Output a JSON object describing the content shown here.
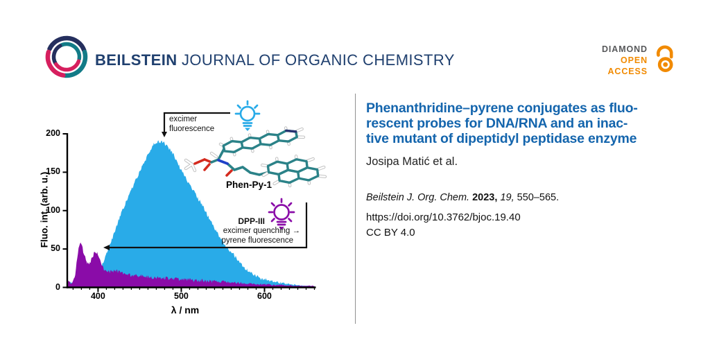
{
  "header": {
    "journal_name_bold": "BEILSTEIN",
    "journal_name_rest": "JOURNAL OF ORGANIC CHEMISTRY",
    "open_access": {
      "line1": "DIAMOND",
      "line2": "OPEN",
      "line3": "ACCESS"
    }
  },
  "article": {
    "title_lines": [
      "Phenanthridine–pyrene conjugates as fluo-",
      "rescent probes for DNA/RNA and an inac-",
      "tive mutant of dipeptidyl peptidase enzyme"
    ],
    "authors": "Josipa Matić et al.",
    "citation": {
      "journal": "Beilstein J. Org. Chem.",
      "year": "2023,",
      "volume": "19,",
      "pages": "550–565."
    },
    "doi": "https://doi.org/10.3762/bjoc.19.40",
    "license": "CC BY 4.0"
  },
  "figure": {
    "molecule_label": "Phen-Py-1",
    "annotations": {
      "excimer_line1": "excimer",
      "excimer_line2": "fluorescence",
      "dpp_name": "DPP-III",
      "dpp_line1": "excimer quenching →",
      "dpp_line2": "pyrene fluorescence"
    }
  },
  "chart_data": {
    "type": "area",
    "title": "",
    "xlabel": "λ / nm",
    "ylabel": "Fluo. int. (arb. u.)",
    "xlim": [
      363,
      660
    ],
    "ylim": [
      0,
      200
    ],
    "xticks": [
      400,
      500,
      600
    ],
    "yticks": [
      0,
      50,
      100,
      150,
      200
    ],
    "grid": false,
    "legend": "none",
    "series": [
      {
        "name": "Phen-Py-1 excimer emission",
        "color": "#29abe8",
        "points": [
          [
            363,
            8
          ],
          [
            365,
            5
          ],
          [
            367,
            6
          ],
          [
            369,
            5
          ],
          [
            371,
            6
          ],
          [
            374,
            7
          ],
          [
            377,
            7
          ],
          [
            380,
            8
          ],
          [
            383,
            8
          ],
          [
            386,
            9
          ],
          [
            389,
            10
          ],
          [
            392,
            12
          ],
          [
            395,
            14
          ],
          [
            398,
            17
          ],
          [
            401,
            22
          ],
          [
            404,
            28
          ],
          [
            407,
            35
          ],
          [
            410,
            43
          ],
          [
            413,
            51
          ],
          [
            416,
            60
          ],
          [
            419,
            70
          ],
          [
            422,
            79
          ],
          [
            425,
            88
          ],
          [
            428,
            97
          ],
          [
            431,
            105
          ],
          [
            434,
            112
          ],
          [
            437,
            119
          ],
          [
            440,
            127
          ],
          [
            443,
            134
          ],
          [
            446,
            141
          ],
          [
            449,
            148
          ],
          [
            452,
            155
          ],
          [
            455,
            161
          ],
          [
            458,
            168
          ],
          [
            461,
            175
          ],
          [
            464,
            181
          ],
          [
            467,
            186
          ],
          [
            470,
            189
          ],
          [
            473,
            190
          ],
          [
            476,
            189
          ],
          [
            479,
            188
          ],
          [
            482,
            185
          ],
          [
            485,
            181
          ],
          [
            488,
            177
          ],
          [
            491,
            172
          ],
          [
            494,
            166
          ],
          [
            497,
            159
          ],
          [
            500,
            152
          ],
          [
            505,
            143
          ],
          [
            510,
            134
          ],
          [
            515,
            125
          ],
          [
            520,
            116
          ],
          [
            525,
            107
          ],
          [
            530,
            97
          ],
          [
            535,
            87
          ],
          [
            540,
            77
          ],
          [
            545,
            68
          ],
          [
            550,
            59
          ],
          [
            555,
            52
          ],
          [
            560,
            46
          ],
          [
            565,
            40
          ],
          [
            570,
            33
          ],
          [
            575,
            27
          ],
          [
            580,
            22
          ],
          [
            585,
            18
          ],
          [
            590,
            15
          ],
          [
            595,
            12
          ],
          [
            600,
            10
          ],
          [
            610,
            8
          ],
          [
            620,
            6
          ],
          [
            630,
            4
          ],
          [
            640,
            3
          ],
          [
            650,
            2
          ],
          [
            660,
            2
          ]
        ]
      },
      {
        "name": "Phen-Py-1 + DPP-III (excimer quenched, pyrene emission)",
        "color": "#8a0ca8",
        "points": [
          [
            363,
            7
          ],
          [
            365,
            9
          ],
          [
            367,
            5
          ],
          [
            369,
            6
          ],
          [
            371,
            10
          ],
          [
            373,
            20
          ],
          [
            375,
            38
          ],
          [
            377,
            52
          ],
          [
            379,
            59
          ],
          [
            381,
            53
          ],
          [
            383,
            43
          ],
          [
            385,
            37
          ],
          [
            387,
            33
          ],
          [
            389,
            32
          ],
          [
            391,
            34
          ],
          [
            393,
            39
          ],
          [
            395,
            44
          ],
          [
            397,
            46
          ],
          [
            399,
            44
          ],
          [
            401,
            39
          ],
          [
            403,
            32
          ],
          [
            405,
            27
          ],
          [
            407,
            23
          ],
          [
            409,
            21
          ],
          [
            411,
            20
          ],
          [
            413,
            20
          ],
          [
            415,
            21
          ],
          [
            417,
            22
          ],
          [
            419,
            21
          ],
          [
            421,
            22
          ],
          [
            423,
            21
          ],
          [
            425,
            20
          ],
          [
            428,
            19
          ],
          [
            431,
            18
          ],
          [
            434,
            18
          ],
          [
            437,
            17
          ],
          [
            440,
            16
          ],
          [
            444,
            16
          ],
          [
            448,
            15
          ],
          [
            452,
            15
          ],
          [
            456,
            14
          ],
          [
            460,
            14
          ],
          [
            465,
            13
          ],
          [
            470,
            13
          ],
          [
            475,
            12
          ],
          [
            480,
            12
          ],
          [
            485,
            12
          ],
          [
            490,
            11
          ],
          [
            495,
            11
          ],
          [
            500,
            10
          ],
          [
            505,
            10
          ],
          [
            510,
            10
          ],
          [
            515,
            9
          ],
          [
            520,
            9
          ],
          [
            525,
            9
          ],
          [
            530,
            8
          ],
          [
            535,
            8
          ],
          [
            540,
            8
          ],
          [
            545,
            7
          ],
          [
            550,
            7
          ],
          [
            555,
            7
          ],
          [
            560,
            6
          ],
          [
            565,
            6
          ],
          [
            570,
            6
          ],
          [
            575,
            5
          ],
          [
            580,
            5
          ],
          [
            585,
            5
          ],
          [
            590,
            4
          ],
          [
            595,
            4
          ],
          [
            600,
            4
          ],
          [
            605,
            4
          ],
          [
            610,
            3
          ],
          [
            615,
            3
          ],
          [
            620,
            3
          ],
          [
            625,
            3
          ],
          [
            630,
            3
          ],
          [
            635,
            2
          ],
          [
            640,
            2
          ],
          [
            645,
            2
          ],
          [
            650,
            2
          ],
          [
            655,
            2
          ],
          [
            660,
            2
          ]
        ]
      }
    ]
  },
  "colors": {
    "accent_blue": "#29abe8",
    "accent_purple": "#8a0ca8",
    "title_blue": "#1465ad",
    "navy": "#252f5e",
    "teal": "#127b87",
    "pink": "#d61f5e",
    "orange": "#f18a00",
    "gray": "#58595b"
  }
}
